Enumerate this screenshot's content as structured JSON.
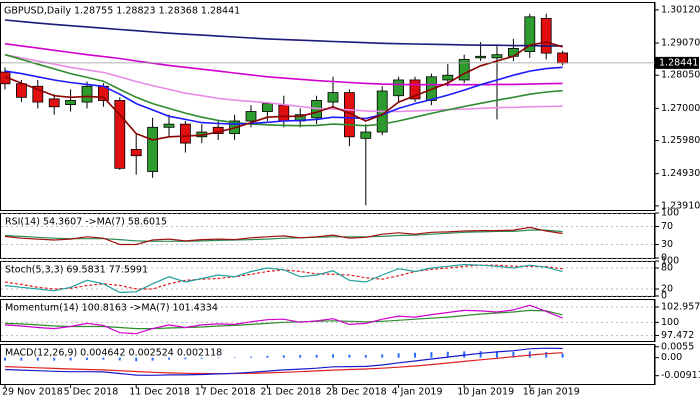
{
  "chart_data": [
    {
      "type": "candlestick",
      "title": "GBPUSD,Daily  1.28755 1.28823 1.28368 1.28441",
      "categories": [
        "29 Nov 2018",
        null,
        null,
        null,
        "5 Dec 2018",
        null,
        null,
        null,
        "11 Dec 2018",
        null,
        null,
        null,
        "17 Dec 2018",
        null,
        null,
        null,
        "21 Dec 2018",
        null,
        null,
        null,
        "28 Dec 2018",
        null,
        null,
        null,
        "4 Jan 2019",
        null,
        null,
        null,
        "10 Jan 2019",
        null,
        null,
        null,
        "16 Jan 2019",
        null,
        null
      ],
      "open": [
        1.2815,
        1.2778,
        1.277,
        1.273,
        1.2712,
        1.272,
        1.277,
        1.2725,
        1.257,
        1.25,
        1.264,
        1.265,
        1.261,
        1.264,
        1.262,
        1.266,
        1.269,
        1.271,
        1.266,
        1.267,
        1.272,
        1.275,
        1.2605,
        1.2625,
        1.274,
        1.279,
        1.2725,
        1.279,
        1.279,
        1.286,
        1.286,
        1.2865,
        1.288,
        1.2985,
        1.28755
      ],
      "high": [
        1.283,
        1.279,
        1.279,
        1.2745,
        1.276,
        1.2785,
        1.278,
        1.2735,
        1.262,
        1.267,
        1.268,
        1.266,
        1.265,
        1.266,
        1.268,
        1.271,
        1.272,
        1.274,
        1.27,
        1.274,
        1.28,
        1.276,
        1.265,
        1.277,
        1.28,
        1.28,
        1.281,
        1.284,
        1.287,
        1.291,
        1.29,
        1.292,
        1.3,
        1.3,
        1.28823
      ],
      "low": [
        1.276,
        1.272,
        1.27,
        1.268,
        1.269,
        1.27,
        1.2705,
        1.2505,
        1.249,
        1.248,
        1.261,
        1.256,
        1.259,
        1.26,
        1.26,
        1.264,
        1.266,
        1.264,
        1.264,
        1.265,
        1.27,
        1.258,
        1.2393,
        1.2615,
        1.272,
        1.272,
        1.271,
        1.277,
        1.278,
        1.285,
        1.2665,
        1.285,
        1.286,
        1.2855,
        1.28368
      ],
      "close": [
        1.2778,
        1.2735,
        1.272,
        1.2705,
        1.2725,
        1.277,
        1.2725,
        1.251,
        1.255,
        1.264,
        1.265,
        1.259,
        1.2625,
        1.262,
        1.266,
        1.269,
        1.2715,
        1.266,
        1.268,
        1.2725,
        1.275,
        1.261,
        1.2625,
        1.2755,
        1.279,
        1.273,
        1.28,
        1.2805,
        1.2855,
        1.2865,
        1.287,
        1.289,
        1.299,
        1.2875,
        1.28441
      ],
      "up_color": "#2e9b2e",
      "down_color": "#e01010",
      "series": [
        {
          "color": "#1a1a7a",
          "values": [
            1.298,
            1.2975,
            1.297,
            1.2966,
            1.2962,
            1.2958,
            1.2954,
            1.295,
            1.2946,
            1.2942,
            1.2938,
            1.2935,
            1.2932,
            1.2929,
            1.2926,
            1.2923,
            1.292,
            1.2918,
            1.2916,
            1.2914,
            1.2912,
            1.291,
            1.2908,
            1.2906,
            1.2905,
            1.2904,
            1.2903,
            1.2902,
            1.2901,
            1.29,
            1.29,
            1.2899,
            1.2899,
            1.2898,
            1.2898
          ]
        },
        {
          "color": "#d000d0",
          "values": [
            1.2905,
            1.2898,
            1.2891,
            1.2884,
            1.2877,
            1.287,
            1.2864,
            1.2858,
            1.285,
            1.2843,
            1.2836,
            1.283,
            1.2824,
            1.2818,
            1.2812,
            1.2806,
            1.28,
            1.2796,
            1.2792,
            1.2788,
            1.2785,
            1.2782,
            1.2779,
            1.2777,
            1.2776,
            1.2775,
            1.2775,
            1.2775,
            1.2775,
            1.2775,
            1.2776,
            1.2776,
            1.2777,
            1.2778,
            1.2779
          ]
        },
        {
          "color": "#e88be8",
          "values": [
            1.287,
            1.286,
            1.285,
            1.284,
            1.283,
            1.2822,
            1.2814,
            1.28,
            1.2785,
            1.2772,
            1.276,
            1.2748,
            1.274,
            1.2732,
            1.2726,
            1.2722,
            1.2718,
            1.2712,
            1.2706,
            1.27,
            1.2698,
            1.2695,
            1.2692,
            1.269,
            1.269,
            1.2692,
            1.2694,
            1.2696,
            1.2698,
            1.27,
            1.2702,
            1.2703,
            1.2705,
            1.2706,
            1.2707
          ]
        },
        {
          "color": "#2e8b2e",
          "values": [
            1.287,
            1.2855,
            1.284,
            1.2825,
            1.281,
            1.2798,
            1.2786,
            1.276,
            1.2735,
            1.2715,
            1.27,
            1.2685,
            1.2672,
            1.2662,
            1.2655,
            1.265,
            1.2648,
            1.2646,
            1.2645,
            1.2646,
            1.265,
            1.2648,
            1.2645,
            1.265,
            1.266,
            1.2672,
            1.2684,
            1.2695,
            1.2706,
            1.2716,
            1.2726,
            1.2735,
            1.2745,
            1.2752,
            1.2756
          ]
        },
        {
          "color": "#1c1cff",
          "values": [
            1.2818,
            1.281,
            1.28,
            1.279,
            1.2782,
            1.2776,
            1.277,
            1.2745,
            1.2715,
            1.2695,
            1.2675,
            1.2665,
            1.2655,
            1.2652,
            1.265,
            1.2652,
            1.2656,
            1.266,
            1.2662,
            1.2665,
            1.2672,
            1.267,
            1.2668,
            1.268,
            1.27,
            1.2715,
            1.2728,
            1.2742,
            1.2758,
            1.2775,
            1.279,
            1.2805,
            1.2818,
            1.2826,
            1.283
          ]
        },
        {
          "color": "#8b0000",
          "values": [
            1.28,
            1.278,
            1.276,
            1.274,
            1.2735,
            1.2738,
            1.2735,
            1.268,
            1.262,
            1.26,
            1.261,
            1.2612,
            1.2615,
            1.2625,
            1.2638,
            1.2655,
            1.2672,
            1.2675,
            1.2675,
            1.2688,
            1.2705,
            1.2685,
            1.266,
            1.268,
            1.272,
            1.274,
            1.276,
            1.278,
            1.281,
            1.2835,
            1.285,
            1.2865,
            1.29,
            1.291,
            1.2895
          ]
        }
      ],
      "current_price": {
        "value": 1.28441,
        "label": "1.28441"
      },
      "ylim": [
        1.2378,
        1.3037
      ],
      "yticks": [
        {
          "value": 1.3012,
          "label": "1.30120"
        },
        {
          "value": 1.2907,
          "label": "1.29070"
        },
        {
          "value": 1.2805,
          "label": "1.28050"
        },
        {
          "value": 1.27,
          "label": "1.27000"
        },
        {
          "value": 1.2598,
          "label": "1.25980"
        },
        {
          "value": 1.2493,
          "label": "1.24930"
        },
        {
          "value": 1.2391,
          "label": "1.23910"
        }
      ]
    },
    {
      "type": "line",
      "title": "RSI(14) 54.3607 ->MA(7) 58.6015",
      "ylim": [
        0,
        100
      ],
      "yticks": [
        100,
        70,
        30,
        0
      ],
      "grid": true,
      "series": [
        {
          "color": "#2e8b57",
          "values": [
            50,
            48,
            46,
            44,
            43,
            43,
            43,
            41,
            38,
            37,
            37,
            37,
            38,
            39,
            40,
            41,
            42,
            44,
            45,
            46,
            47,
            47,
            47,
            48,
            50,
            51,
            53,
            55,
            57,
            58,
            59,
            59,
            62,
            62,
            58.6015
          ]
        },
        {
          "color": "#a01010",
          "values": [
            48,
            44,
            42,
            40,
            42,
            47,
            44,
            30,
            30,
            40,
            42,
            38,
            41,
            42,
            41,
            45,
            47,
            49,
            45,
            47,
            51,
            44,
            46,
            53,
            56,
            53,
            57,
            58,
            60,
            61,
            61,
            62,
            68,
            60,
            54.3607
          ]
        }
      ]
    },
    {
      "type": "line",
      "title": "Stoch(5,3,3) 69.5831 77.5991",
      "ylim": [
        0,
        100
      ],
      "yticks": [
        100,
        80,
        20,
        0
      ],
      "grid": true,
      "series": [
        {
          "color": "#e02020",
          "dash": true,
          "values": [
            40,
            33,
            25,
            20,
            22,
            30,
            35,
            30,
            20,
            20,
            35,
            45,
            48,
            50,
            55,
            62,
            70,
            75,
            70,
            63,
            62,
            60,
            52,
            48,
            58,
            70,
            76,
            80,
            85,
            88,
            88,
            85,
            85,
            84,
            77.5991
          ]
        },
        {
          "color": "#20a0a0",
          "values": [
            30,
            25,
            20,
            15,
            25,
            45,
            35,
            10,
            12,
            35,
            55,
            40,
            50,
            60,
            55,
            70,
            80,
            75,
            55,
            60,
            72,
            45,
            40,
            60,
            78,
            70,
            80,
            85,
            90,
            88,
            85,
            80,
            88,
            82,
            69.5831
          ]
        }
      ]
    },
    {
      "type": "line",
      "title": "Momentum(14) 100.8163 ->MA(7) 101.4334",
      "ylim": [
        96.4,
        104.5
      ],
      "yticks": [
        102.9578,
        100,
        97.472
      ],
      "grid": true,
      "series": [
        {
          "color": "#2e8b2e",
          "values": [
            99.8,
            99.7,
            99.5,
            99.3,
            99.2,
            99.2,
            99.2,
            99.0,
            98.8,
            98.8,
            98.9,
            99.0,
            99.1,
            99.3,
            99.4,
            99.6,
            99.8,
            100.0,
            100.1,
            100.2,
            100.3,
            100.2,
            100.1,
            100.2,
            100.4,
            100.6,
            100.8,
            101.0,
            101.3,
            101.6,
            101.8,
            102.0,
            102.3,
            102.2,
            101.4334
          ]
        },
        {
          "color": "#d000d0",
          "values": [
            99.5,
            99.3,
            99.0,
            98.8,
            99.2,
            99.8,
            99.4,
            98.0,
            97.8,
            98.8,
            99.5,
            99.0,
            99.5,
            99.7,
            99.6,
            100.1,
            100.5,
            100.6,
            100.0,
            100.3,
            100.7,
            99.6,
            99.8,
            100.6,
            101.2,
            101.0,
            101.5,
            101.9,
            102.3,
            102.2,
            102.0,
            102.4,
            103.3,
            102.1,
            100.8163
          ]
        }
      ]
    },
    {
      "type": "macd",
      "title": "MACD(12,26,9) 0.004642 0.002524 0.002118",
      "ylim": [
        -0.0133,
        0.0069
      ],
      "yticks": [
        0.0055,
        {
          "value": 0,
          "label": "0.00"
        },
        -0.00911
      ],
      "series": [
        {
          "color": "#2a6cff",
          "style": "bar",
          "values": [
            -0.0015,
            -0.0015,
            -0.0015,
            -0.0015,
            -0.0014,
            -0.0011,
            -0.001,
            -0.0014,
            -0.0018,
            -0.0015,
            -0.001,
            -0.0008,
            -0.0005,
            -0.0001,
            0.0001,
            0.0005,
            0.0009,
            0.0012,
            0.0013,
            0.0014,
            0.0017,
            0.0015,
            0.0013,
            0.0016,
            0.0022,
            0.0025,
            0.0028,
            0.003,
            0.0032,
            0.0033,
            0.0032,
            0.003,
            0.0032,
            0.0028,
            0.002118
          ]
        },
        {
          "color": "#e02020",
          "values": [
            -0.0045,
            -0.0048,
            -0.0051,
            -0.0054,
            -0.0057,
            -0.006,
            -0.0062,
            -0.0066,
            -0.007,
            -0.0074,
            -0.0077,
            -0.0079,
            -0.008,
            -0.0081,
            -0.008,
            -0.0079,
            -0.0077,
            -0.0074,
            -0.0071,
            -0.0067,
            -0.0063,
            -0.006,
            -0.0057,
            -0.0053,
            -0.0048,
            -0.0042,
            -0.0035,
            -0.0027,
            -0.0019,
            -0.0011,
            -0.0003,
            0.0005,
            0.0013,
            0.002,
            0.002524
          ]
        },
        {
          "color": "#1a1acc",
          "values": [
            -0.006,
            -0.0063,
            -0.0066,
            -0.0069,
            -0.0071,
            -0.0071,
            -0.0072,
            -0.008,
            -0.0088,
            -0.0089,
            -0.0087,
            -0.0087,
            -0.0085,
            -0.0082,
            -0.0079,
            -0.0074,
            -0.0068,
            -0.0062,
            -0.0058,
            -0.0053,
            -0.0046,
            -0.0045,
            -0.0044,
            -0.0037,
            -0.0026,
            -0.0017,
            -0.0007,
            0.0003,
            0.0013,
            0.0022,
            0.0029,
            0.0035,
            0.0045,
            0.0048,
            0.004642
          ]
        }
      ]
    }
  ]
}
